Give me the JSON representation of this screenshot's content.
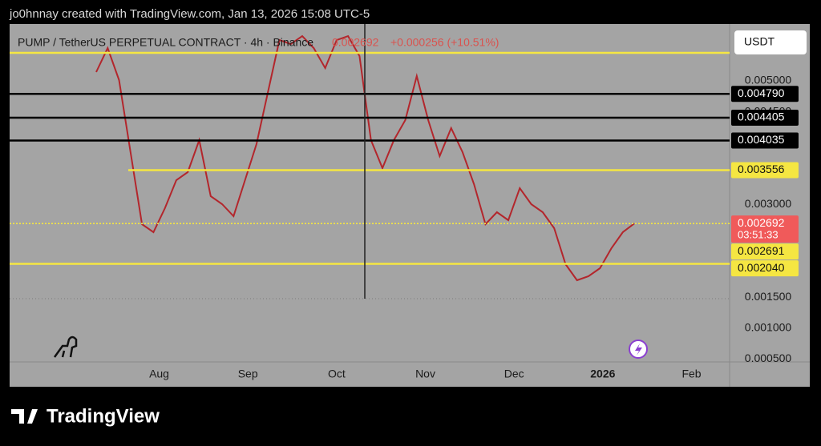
{
  "header": {
    "credit": "jo0hnnay created with TradingView.com, Jan 13, 2026 15:08 UTC-5",
    "symbol": "PUMP / TetherUS PERPETUAL CONTRACT · 4h · Binance",
    "last": "0.002692",
    "change": "+0.000256 (+10.51%)",
    "currency": "USDT",
    "brand": "TradingView"
  },
  "chart_data": {
    "type": "line",
    "color": "#b3262c",
    "x": [
      0,
      4,
      8,
      12,
      16,
      20,
      24,
      28,
      32,
      36,
      40,
      44,
      48,
      52,
      56,
      60,
      64,
      68,
      72,
      76,
      80,
      84,
      88,
      92,
      96,
      100,
      104,
      108,
      112,
      116,
      120,
      124,
      128,
      132,
      136,
      140,
      144,
      148,
      152,
      156,
      160,
      164,
      168,
      172,
      176,
      180,
      184,
      188
    ],
    "values": [
      0.005143,
      0.005531,
      0.005013,
      0.003847,
      0.002681,
      0.002552,
      0.00294,
      0.003394,
      0.003523,
      0.004041,
      0.003135,
      0.003005,
      0.002811,
      0.003394,
      0.003977,
      0.004819,
      0.005661,
      0.005596,
      0.005725,
      0.005531,
      0.005207,
      0.005661,
      0.005725,
      0.005402,
      0.004041,
      0.003588,
      0.004041,
      0.004365,
      0.005078,
      0.004365,
      0.003782,
      0.004236,
      0.003847,
      0.003329,
      0.002681,
      0.002876,
      0.002746,
      0.003264,
      0.003005,
      0.002876,
      0.002617,
      0.002034,
      0.001775,
      0.001839,
      0.001969,
      0.002293,
      0.002552,
      0.002692
    ],
    "xlim": [
      -30.25,
      221.3
    ],
    "xticks": [
      {
        "value": 22,
        "label": "Aug"
      },
      {
        "value": 53,
        "label": "Sep"
      },
      {
        "value": 84,
        "label": "Oct"
      },
      {
        "value": 115,
        "label": "Nov"
      },
      {
        "value": 146,
        "label": "Dec"
      },
      {
        "value": 177,
        "label": "2026"
      },
      {
        "value": 208,
        "label": "Feb"
      }
    ],
    "ylim": [
      0.000453,
      0.00592
    ],
    "yticks": [
      {
        "value": 0.005,
        "label": "0.005000"
      },
      {
        "value": 0.0045,
        "label": "0.004500"
      },
      {
        "value": 0.003,
        "label": "0.003000"
      },
      {
        "value": 0.0015,
        "label": "0.001500"
      },
      {
        "value": 0.001,
        "label": "0.001000"
      },
      {
        "value": 0.0005,
        "label": "0.000500"
      }
    ],
    "hlines": [
      {
        "value": 0.005453,
        "color": "#f5e642"
      },
      {
        "value": 0.00479,
        "label": "0.004790",
        "color": "#000000"
      },
      {
        "value": 0.004405,
        "label": "0.004405",
        "color": "#000000"
      },
      {
        "value": 0.004035,
        "label": "0.004035",
        "color": "#000000"
      },
      {
        "value": 0.003556,
        "label": "0.003556",
        "color": "#f5e642"
      },
      {
        "value": 0.002692,
        "label": "0.002692",
        "countdown": "03:51:33",
        "color": "#f05a5a"
      },
      {
        "value": 0.002691,
        "label": "0.002691",
        "color": "#f5e642"
      },
      {
        "value": 0.00204,
        "label": "0.002040",
        "color": "#f5e642"
      }
    ]
  }
}
